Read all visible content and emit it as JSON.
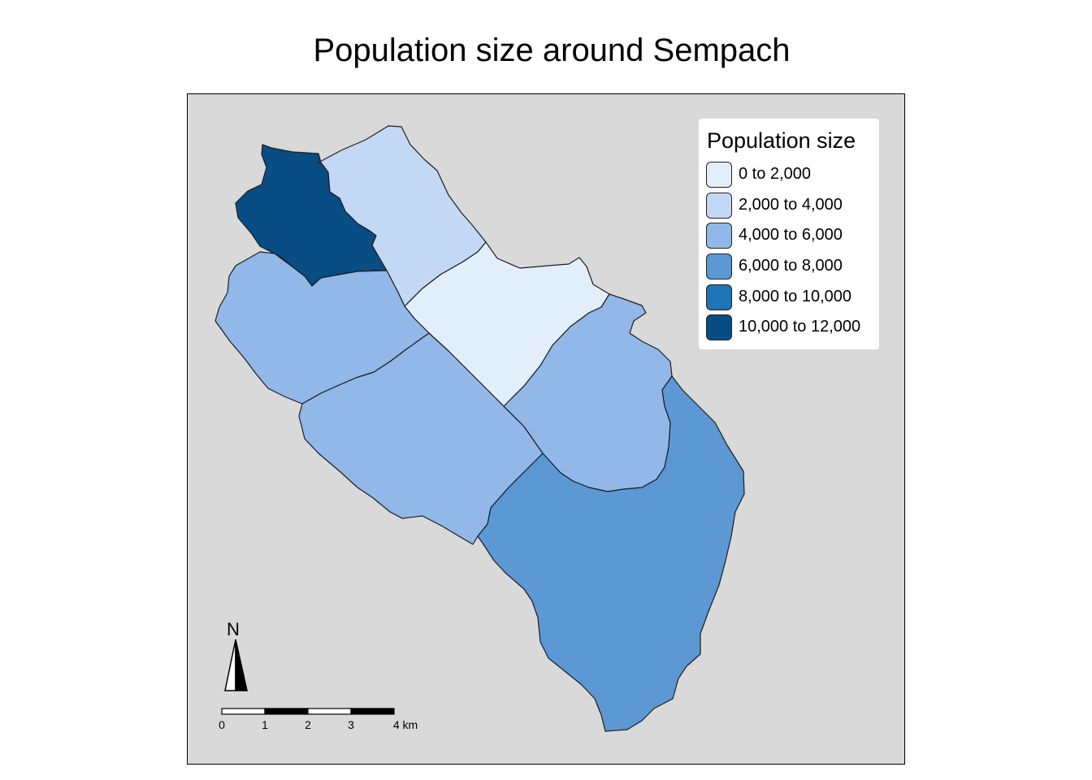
{
  "title": "Population size around Sempach",
  "legend": {
    "title": "Population size",
    "items": [
      {
        "label": "0 to 2,000",
        "color": "#e3eefb"
      },
      {
        "label": "2,000 to 4,000",
        "color": "#c2d8f5"
      },
      {
        "label": "4,000 to 6,000",
        "color": "#91b8e9"
      },
      {
        "label": "6,000 to 8,000",
        "color": "#5b98d4"
      },
      {
        "label": "8,000 to 10,000",
        "color": "#1e74b7"
      },
      {
        "label": "10,000 to 12,000",
        "color": "#084d83"
      }
    ]
  },
  "north_arrow": {
    "label": "N"
  },
  "scale_bar": {
    "ticks": [
      "0",
      "1",
      "2",
      "3",
      "4 km"
    ]
  },
  "map": {
    "background_color": "#d9d9d9",
    "regions": [
      {
        "name": "region-northwest",
        "class": "10,000 to 12,000"
      },
      {
        "name": "region-north",
        "class": "2,000 to 4,000"
      },
      {
        "name": "region-center",
        "class": "0 to 2,000"
      },
      {
        "name": "region-west",
        "class": "4,000 to 6,000"
      },
      {
        "name": "region-southwest",
        "class": "4,000 to 6,000"
      },
      {
        "name": "region-east",
        "class": "4,000 to 6,000"
      },
      {
        "name": "region-southeast",
        "class": "6,000 to 8,000"
      }
    ]
  }
}
